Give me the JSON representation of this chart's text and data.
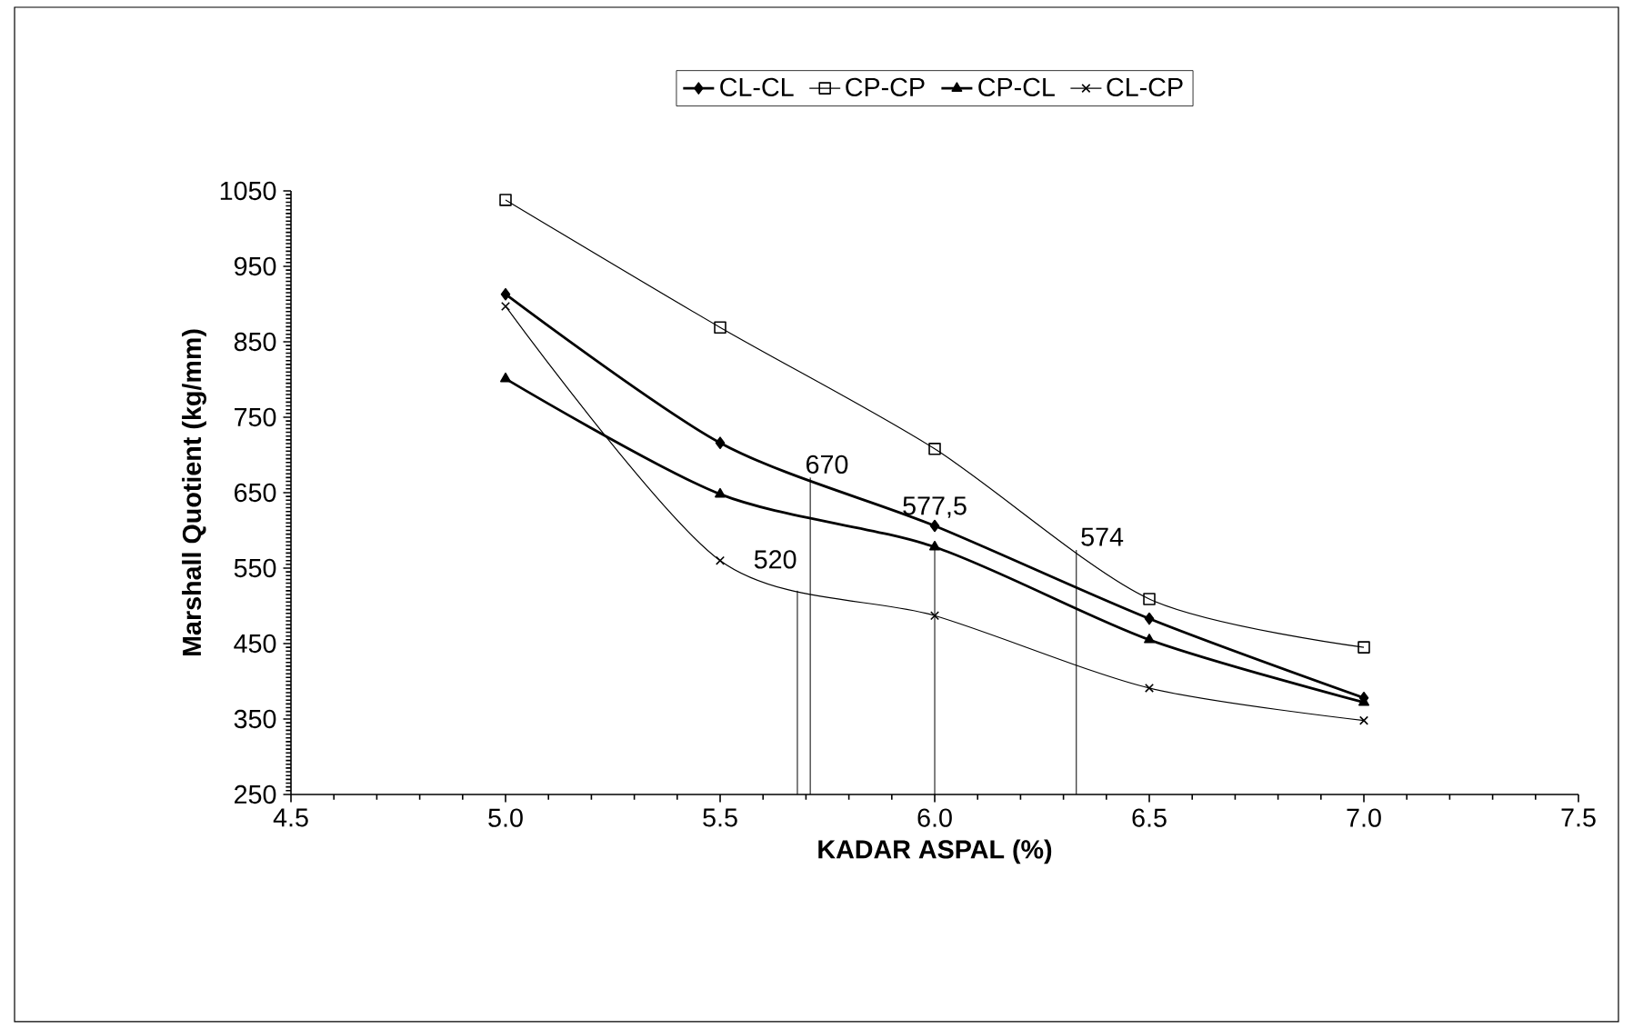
{
  "chart_data": {
    "type": "line",
    "xlabel": "KADAR ASPAL (%)",
    "ylabel": "Marshall Quotient (kg/mm)",
    "x": [
      5.0,
      5.5,
      6.0,
      6.5,
      7.0
    ],
    "series": [
      {
        "name": "CL-CL",
        "color": "#000000",
        "marker": "diamond",
        "values": [
          913,
          716,
          606,
          483,
          378
        ]
      },
      {
        "name": "CP-CP",
        "color": "#000000",
        "marker": "square",
        "values": [
          1038,
          869,
          708,
          509,
          445
        ]
      },
      {
        "name": "CP-CL",
        "color": "#000000",
        "marker": "triangle",
        "values": [
          801,
          648,
          578,
          455,
          372
        ]
      },
      {
        "name": "CL-CP",
        "color": "#000000",
        "marker": "cross",
        "values": [
          897,
          560,
          487,
          391,
          348
        ]
      }
    ],
    "xlim": [
      4.5,
      7.5
    ],
    "xticks": [
      {
        "value": 4.5,
        "label": "4.5"
      },
      {
        "value": 5.0,
        "label": "5.0"
      },
      {
        "value": 5.5,
        "label": "5.5"
      },
      {
        "value": 6.0,
        "label": "6.0"
      },
      {
        "value": 6.5,
        "label": "6.5"
      },
      {
        "value": 7.0,
        "label": "7.0"
      },
      {
        "value": 7.5,
        "label": "7.5"
      }
    ],
    "ylim": [
      250,
      1050
    ],
    "yticks": [
      250,
      350,
      450,
      550,
      650,
      750,
      850,
      950,
      1050
    ],
    "annotations": [
      {
        "text": "520",
        "x": 5.68,
        "y": 520
      },
      {
        "text": "670",
        "x": 5.71,
        "y": 670
      },
      {
        "text": "577,5",
        "x": 6.0,
        "y": 577.5
      },
      {
        "text": "574",
        "x": 6.33,
        "y": 574
      }
    ],
    "legend": "top",
    "grid": false,
    "line_style": "solid"
  }
}
